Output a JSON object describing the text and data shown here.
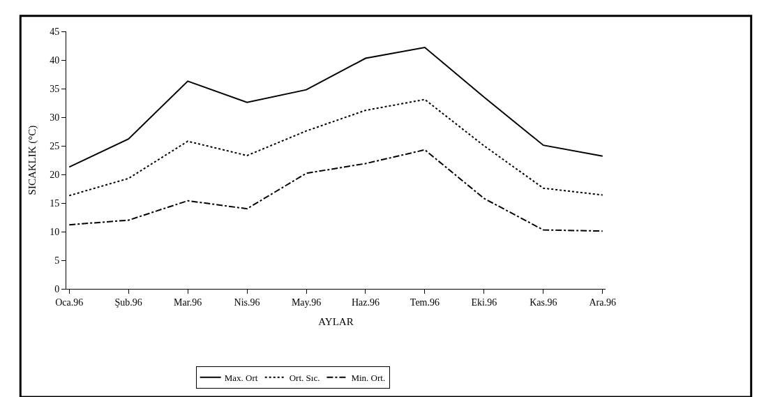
{
  "chart_data": {
    "type": "line",
    "xlabel": "AYLAR",
    "ylabel": "SICAKLIK (°C)",
    "categories": [
      "Oca.96",
      "Şub.96",
      "Mar.96",
      "Nis.96",
      "May.96",
      "Haz.96",
      "Tem.96",
      "Eki.96",
      "Kas.96",
      "Ara.96"
    ],
    "series": [
      {
        "name": "Max. Ort",
        "color": "#000000",
        "line_style": "solid",
        "values": [
          21.3,
          26.2,
          36.3,
          32.6,
          34.8,
          40.3,
          42.2,
          33.5,
          25.1,
          23.2
        ]
      },
      {
        "name": "Ort. Sıc.",
        "color": "#000000",
        "line_style": "dotted",
        "values": [
          16.3,
          19.3,
          25.8,
          23.3,
          27.6,
          31.2,
          33.1,
          25.0,
          17.6,
          16.4
        ]
      },
      {
        "name": "Min. Ort.",
        "color": "#000000",
        "line_style": "dashed",
        "values": [
          11.2,
          12.0,
          15.4,
          14.0,
          20.2,
          21.9,
          24.3,
          15.8,
          10.3,
          10.1
        ]
      }
    ],
    "ylim": [
      0,
      45
    ],
    "yticks": [
      0,
      5,
      10,
      15,
      20,
      25,
      30,
      35,
      40,
      45
    ],
    "grid": false,
    "legend": "bottom",
    "marker": "none"
  }
}
